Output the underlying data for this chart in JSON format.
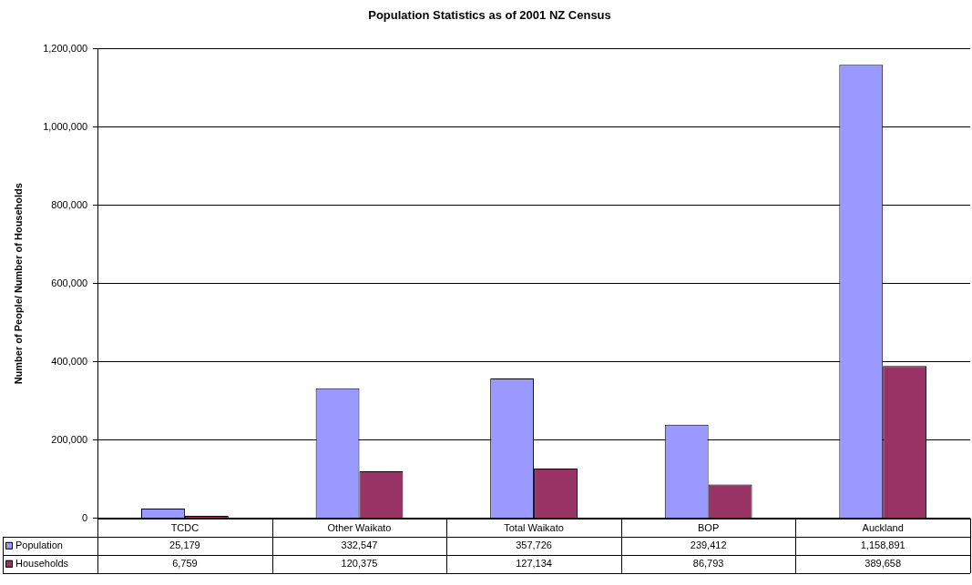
{
  "chart_data": {
    "type": "bar",
    "title": "Population Statistics as of 2001 NZ Census",
    "ylabel": "Number of People/ Number of Households",
    "categories": [
      "TCDC",
      "Other Waikato",
      "Total Waikato",
      "BOP",
      "Auckland"
    ],
    "series": [
      {
        "name": "Population",
        "color": "#9999ff",
        "values": [
          25179,
          332547,
          357726,
          239412,
          1158891
        ],
        "value_labels": [
          "25,179",
          "332,547",
          "357,726",
          "239,412",
          "1,158,891"
        ]
      },
      {
        "name": "Households",
        "color": "#993366",
        "values": [
          6759,
          120375,
          127134,
          86793,
          389658
        ],
        "value_labels": [
          "6,759",
          "120,375",
          "127,134",
          "86,793",
          "389,658"
        ]
      }
    ],
    "ylim": [
      0,
      1200000
    ],
    "yticks": [
      {
        "value": 0,
        "label": "0"
      },
      {
        "value": 200000,
        "label": "200,000"
      },
      {
        "value": 400000,
        "label": "400,000"
      },
      {
        "value": 600000,
        "label": "600,000"
      },
      {
        "value": 800000,
        "label": "800,000"
      },
      {
        "value": 1000000,
        "label": "1,000,000"
      },
      {
        "value": 1200000,
        "label": "1,200,000"
      }
    ],
    "grid": "y",
    "legend": "bottom left"
  }
}
